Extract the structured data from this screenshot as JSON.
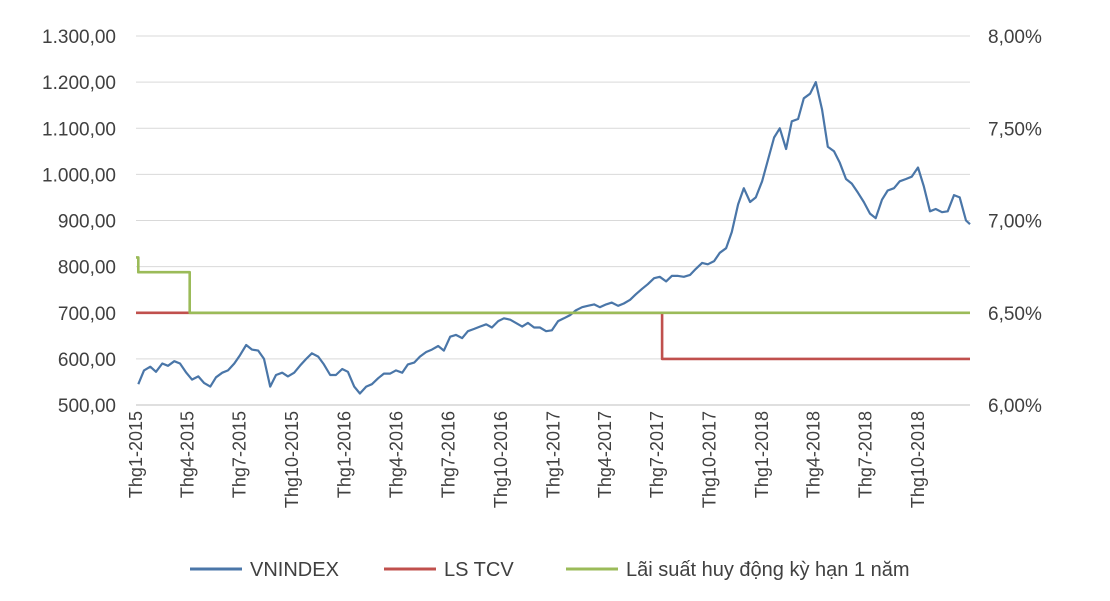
{
  "chart_data": {
    "type": "line",
    "title": "",
    "xlabel": "",
    "ylabel_left": "",
    "ylabel_right": "",
    "grid": true,
    "legend_position": "bottom",
    "y_left": {
      "min": 500,
      "max": 1300,
      "ticks": [
        500,
        600,
        700,
        800,
        900,
        1000,
        1100,
        1200,
        1300
      ],
      "tick_labels": [
        "500,00",
        "600,00",
        "700,00",
        "800,00",
        "900,00",
        "1.000,00",
        "1.100,00",
        "1.200,00",
        "1.300,00"
      ]
    },
    "y_right": {
      "min": 6.0,
      "max": 8.0,
      "ticks": [
        6.0,
        6.5,
        7.0,
        7.5,
        8.0
      ],
      "tick_labels": [
        "6,00%",
        "6,50%",
        "7,00%",
        "7,50%",
        "8,00%"
      ]
    },
    "x_range": [
      "2015-01-01",
      "2018-12-31"
    ],
    "x_ticks": [
      {
        "date": "2015-01-01",
        "label": "Thg1-2015"
      },
      {
        "date": "2015-04-01",
        "label": "Thg4-2015"
      },
      {
        "date": "2015-07-01",
        "label": "Thg7-2015"
      },
      {
        "date": "2015-10-01",
        "label": "Thg10-2015"
      },
      {
        "date": "2016-01-01",
        "label": "Thg1-2016"
      },
      {
        "date": "2016-04-01",
        "label": "Thg4-2016"
      },
      {
        "date": "2016-07-01",
        "label": "Thg7-2016"
      },
      {
        "date": "2016-10-01",
        "label": "Thg10-2016"
      },
      {
        "date": "2017-01-01",
        "label": "Thg1-2017"
      },
      {
        "date": "2017-04-01",
        "label": "Thg4-2017"
      },
      {
        "date": "2017-07-01",
        "label": "Thg7-2017"
      },
      {
        "date": "2017-10-01",
        "label": "Thg10-2017"
      },
      {
        "date": "2018-01-01",
        "label": "Thg1-2018"
      },
      {
        "date": "2018-04-01",
        "label": "Thg4-2018"
      },
      {
        "date": "2018-07-01",
        "label": "Thg7-2018"
      },
      {
        "date": "2018-10-01",
        "label": "Thg10-2018"
      }
    ],
    "series": [
      {
        "name": "VNINDEX",
        "axis": "left",
        "color": "#4a76a8",
        "points": [
          [
            "2015-01-05",
            545
          ],
          [
            "2015-01-15",
            575
          ],
          [
            "2015-01-26",
            583
          ],
          [
            "2015-02-05",
            572
          ],
          [
            "2015-02-16",
            590
          ],
          [
            "2015-02-26",
            585
          ],
          [
            "2015-03-09",
            595
          ],
          [
            "2015-03-19",
            590
          ],
          [
            "2015-03-30",
            570
          ],
          [
            "2015-04-09",
            555
          ],
          [
            "2015-04-20",
            562
          ],
          [
            "2015-04-30",
            548
          ],
          [
            "2015-05-11",
            540
          ],
          [
            "2015-05-21",
            560
          ],
          [
            "2015-06-01",
            570
          ],
          [
            "2015-06-11",
            575
          ],
          [
            "2015-06-22",
            590
          ],
          [
            "2015-07-02",
            608
          ],
          [
            "2015-07-13",
            630
          ],
          [
            "2015-07-23",
            620
          ],
          [
            "2015-08-03",
            618
          ],
          [
            "2015-08-13",
            600
          ],
          [
            "2015-08-24",
            540
          ],
          [
            "2015-09-03",
            565
          ],
          [
            "2015-09-14",
            570
          ],
          [
            "2015-09-24",
            562
          ],
          [
            "2015-10-05",
            570
          ],
          [
            "2015-10-15",
            585
          ],
          [
            "2015-10-26",
            600
          ],
          [
            "2015-11-05",
            612
          ],
          [
            "2015-11-16",
            605
          ],
          [
            "2015-11-26",
            588
          ],
          [
            "2015-12-07",
            565
          ],
          [
            "2015-12-17",
            565
          ],
          [
            "2015-12-28",
            578
          ],
          [
            "2016-01-07",
            572
          ],
          [
            "2016-01-18",
            540
          ],
          [
            "2016-01-28",
            525
          ],
          [
            "2016-02-08",
            540
          ],
          [
            "2016-02-18",
            545
          ],
          [
            "2016-02-29",
            558
          ],
          [
            "2016-03-10",
            568
          ],
          [
            "2016-03-21",
            568
          ],
          [
            "2016-03-31",
            575
          ],
          [
            "2016-04-11",
            570
          ],
          [
            "2016-04-21",
            588
          ],
          [
            "2016-05-02",
            592
          ],
          [
            "2016-05-12",
            605
          ],
          [
            "2016-05-23",
            615
          ],
          [
            "2016-06-02",
            620
          ],
          [
            "2016-06-13",
            628
          ],
          [
            "2016-06-23",
            618
          ],
          [
            "2016-07-04",
            648
          ],
          [
            "2016-07-14",
            652
          ],
          [
            "2016-07-25",
            645
          ],
          [
            "2016-08-04",
            660
          ],
          [
            "2016-08-15",
            665
          ],
          [
            "2016-08-25",
            670
          ],
          [
            "2016-09-05",
            675
          ],
          [
            "2016-09-15",
            668
          ],
          [
            "2016-09-26",
            682
          ],
          [
            "2016-10-06",
            688
          ],
          [
            "2016-10-17",
            685
          ],
          [
            "2016-10-27",
            678
          ],
          [
            "2016-11-07",
            670
          ],
          [
            "2016-11-17",
            678
          ],
          [
            "2016-11-28",
            668
          ],
          [
            "2016-12-08",
            668
          ],
          [
            "2016-12-19",
            660
          ],
          [
            "2016-12-29",
            662
          ],
          [
            "2017-01-09",
            682
          ],
          [
            "2017-01-19",
            688
          ],
          [
            "2017-01-30",
            695
          ],
          [
            "2017-02-09",
            705
          ],
          [
            "2017-02-20",
            712
          ],
          [
            "2017-03-02",
            715
          ],
          [
            "2017-03-13",
            718
          ],
          [
            "2017-03-23",
            712
          ],
          [
            "2017-04-03",
            718
          ],
          [
            "2017-04-13",
            722
          ],
          [
            "2017-04-24",
            715
          ],
          [
            "2017-05-04",
            720
          ],
          [
            "2017-05-15",
            728
          ],
          [
            "2017-05-25",
            740
          ],
          [
            "2017-06-05",
            752
          ],
          [
            "2017-06-15",
            762
          ],
          [
            "2017-06-26",
            775
          ],
          [
            "2017-07-06",
            778
          ],
          [
            "2017-07-17",
            768
          ],
          [
            "2017-07-27",
            780
          ],
          [
            "2017-08-07",
            780
          ],
          [
            "2017-08-17",
            778
          ],
          [
            "2017-08-28",
            782
          ],
          [
            "2017-09-07",
            795
          ],
          [
            "2017-09-18",
            808
          ],
          [
            "2017-09-28",
            805
          ],
          [
            "2017-10-09",
            812
          ],
          [
            "2017-10-19",
            830
          ],
          [
            "2017-10-30",
            840
          ],
          [
            "2017-11-09",
            875
          ],
          [
            "2017-11-20",
            935
          ],
          [
            "2017-11-30",
            970
          ],
          [
            "2017-12-11",
            940
          ],
          [
            "2017-12-21",
            950
          ],
          [
            "2018-01-01",
            985
          ],
          [
            "2018-01-11",
            1030
          ],
          [
            "2018-01-22",
            1080
          ],
          [
            "2018-02-01",
            1100
          ],
          [
            "2018-02-12",
            1055
          ],
          [
            "2018-02-22",
            1115
          ],
          [
            "2018-03-05",
            1120
          ],
          [
            "2018-03-15",
            1165
          ],
          [
            "2018-03-26",
            1175
          ],
          [
            "2018-04-05",
            1200
          ],
          [
            "2018-04-16",
            1140
          ],
          [
            "2018-04-26",
            1060
          ],
          [
            "2018-05-07",
            1050
          ],
          [
            "2018-05-17",
            1025
          ],
          [
            "2018-05-28",
            990
          ],
          [
            "2018-06-07",
            980
          ],
          [
            "2018-06-18",
            960
          ],
          [
            "2018-06-28",
            940
          ],
          [
            "2018-07-09",
            915
          ],
          [
            "2018-07-19",
            905
          ],
          [
            "2018-07-30",
            945
          ],
          [
            "2018-08-09",
            965
          ],
          [
            "2018-08-20",
            970
          ],
          [
            "2018-08-30",
            985
          ],
          [
            "2018-09-10",
            990
          ],
          [
            "2018-09-20",
            995
          ],
          [
            "2018-10-01",
            1015
          ],
          [
            "2018-10-11",
            975
          ],
          [
            "2018-10-22",
            920
          ],
          [
            "2018-11-01",
            925
          ],
          [
            "2018-11-12",
            918
          ],
          [
            "2018-11-22",
            920
          ],
          [
            "2018-12-03",
            955
          ],
          [
            "2018-12-13",
            950
          ],
          [
            "2018-12-24",
            900
          ],
          [
            "2018-12-31",
            892
          ]
        ]
      },
      {
        "name": "LS TCV",
        "axis": "right",
        "color": "#c0504d",
        "points": [
          [
            "2015-01-01",
            6.5
          ],
          [
            "2017-07-10",
            6.5
          ],
          [
            "2017-07-10",
            6.25
          ],
          [
            "2018-12-31",
            6.25
          ]
        ]
      },
      {
        "name": "Lãi suất huy động kỳ hạn 1 năm",
        "axis": "right",
        "color": "#9bbb59",
        "points": [
          [
            "2015-01-01",
            6.8
          ],
          [
            "2015-01-05",
            6.8
          ],
          [
            "2015-01-05",
            6.72
          ],
          [
            "2015-04-05",
            6.72
          ],
          [
            "2015-04-05",
            6.5
          ],
          [
            "2018-12-31",
            6.5
          ]
        ]
      }
    ]
  }
}
